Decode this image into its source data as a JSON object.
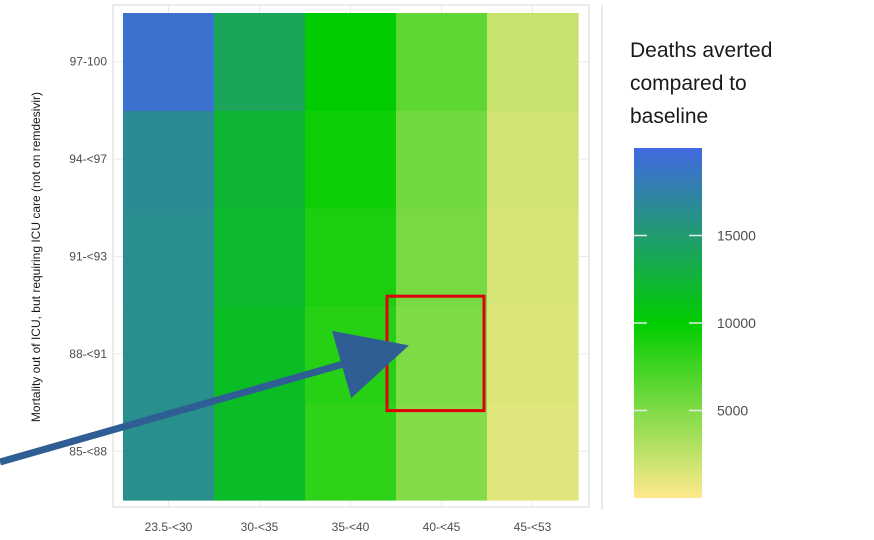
{
  "chart_data": {
    "type": "heatmap",
    "title": "",
    "xlabel": "",
    "ylabel": "Mortality out of ICU, but requiring ICU care (not on remdesivir)",
    "x_categories": [
      "23.5-<30",
      "30-<35",
      "35-<40",
      "40-<45",
      "45-<53"
    ],
    "y_categories": [
      "85-<88",
      "88-<91",
      "91-<93",
      "94-<97",
      "97-100"
    ],
    "values": [
      [
        16200,
        11800,
        8200,
        4900,
        1200
      ],
      [
        16200,
        11600,
        8500,
        5100,
        1400
      ],
      [
        16400,
        12000,
        9000,
        5300,
        1600
      ],
      [
        16700,
        12300,
        9500,
        5600,
        1800
      ],
      [
        19200,
        14000,
        10100,
        6300,
        2200
      ]
    ],
    "legend": {
      "title_lines": [
        "Deaths averted",
        "compared to",
        "baseline"
      ],
      "ticks": [
        5000,
        10000,
        15000
      ],
      "range": [
        0,
        20000
      ],
      "placement": "right",
      "colors": [
        "#ffe98c",
        "#00cd00",
        "#4169e1"
      ]
    },
    "highlight": {
      "x_category": "40-<45",
      "y_category": "88-<91",
      "color": "#e0000a"
    },
    "arrow_color": "#2e5e94",
    "grid": true
  }
}
